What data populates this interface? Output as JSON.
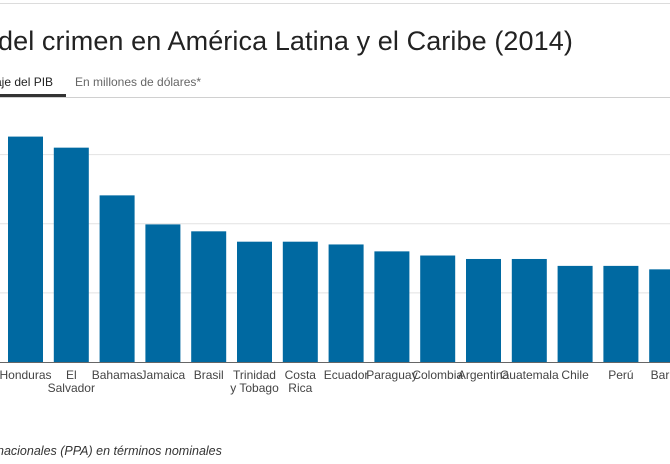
{
  "page": {
    "title": "del crimen en América Latina y el Caribe (2014)",
    "tabs": [
      {
        "label": "aje del PIB",
        "active": true
      },
      {
        "label": "En millones de dólares*",
        "active": false
      }
    ],
    "footnote": "nacionales (PPA) en términos nominales"
  },
  "colors": {
    "bar": "#0069a1",
    "grid": "#e2e2e2",
    "axis": "#666666"
  },
  "chart_data": {
    "type": "bar",
    "categories": [
      "Honduras",
      "El Salvador",
      "Bahamas",
      "Jamaica",
      "Brasil",
      "Trinidad y Tobago",
      "Costa Rica",
      "Ecuador",
      "Paraguay",
      "Colombia",
      "Argentina",
      "Guatemala",
      "Chile",
      "Perú",
      "Barba"
    ],
    "category_lines": [
      [
        "Honduras"
      ],
      [
        "El",
        "Salvador"
      ],
      [
        "Bahamas"
      ],
      [
        "Jamaica"
      ],
      [
        "Brasil"
      ],
      [
        "Trinidad",
        "y Tobago"
      ],
      [
        "Costa",
        "Rica"
      ],
      [
        "Ecuador"
      ],
      [
        "Paraguay"
      ],
      [
        "Colombia"
      ],
      [
        "Argentina"
      ],
      [
        "Guatemala"
      ],
      [
        "Chile"
      ],
      [
        "Perú"
      ],
      [
        "Barba"
      ]
    ],
    "values": [
      3.26,
      3.1,
      2.41,
      1.99,
      1.89,
      1.74,
      1.74,
      1.7,
      1.6,
      1.54,
      1.49,
      1.49,
      1.39,
      1.39,
      1.34
    ],
    "ylim": [
      0,
      3.5
    ],
    "gridlines": [
      1,
      2,
      3
    ],
    "grid": true,
    "xlabel": "",
    "ylabel": ""
  }
}
